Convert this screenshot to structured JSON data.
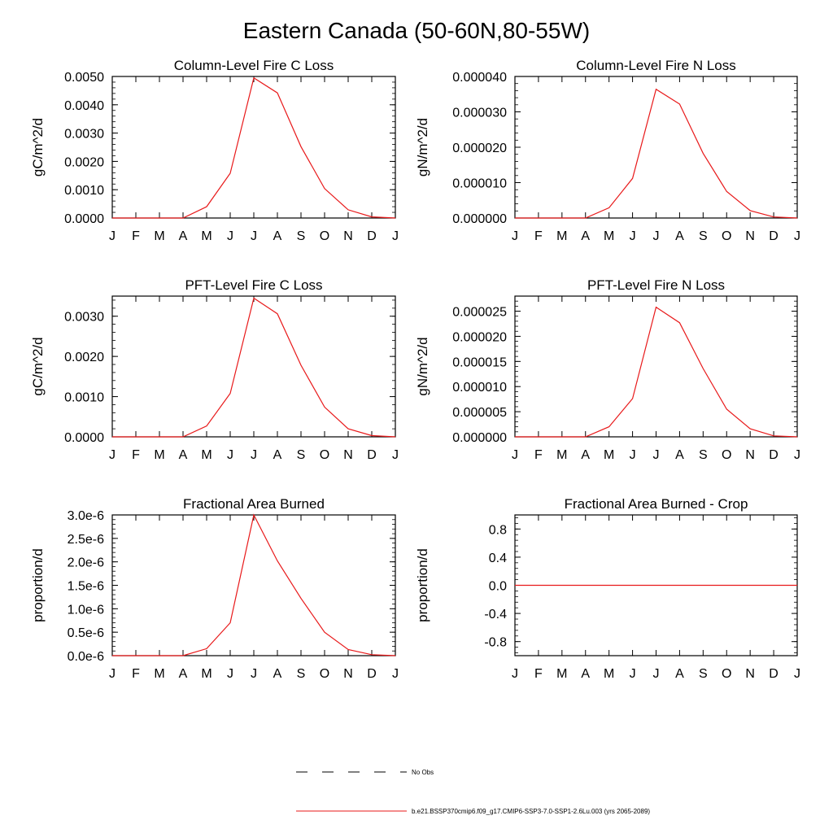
{
  "page_title": "Eastern Canada (50-60N,80-55W)",
  "chart_data": [
    {
      "type": "line",
      "title": "Column-Level Fire C Loss",
      "ylabel": "gC/m^2/d",
      "xlabel": "",
      "categories": [
        "J",
        "F",
        "M",
        "A",
        "M",
        "J",
        "J",
        "A",
        "S",
        "O",
        "N",
        "D",
        "J"
      ],
      "ylim": [
        0,
        0.005
      ],
      "yticks": [
        0,
        0.001,
        0.002,
        0.003,
        0.004,
        0.005
      ],
      "ytick_labels": [
        "0.0000",
        "0.0010",
        "0.0020",
        "0.0030",
        "0.0040",
        "0.0050"
      ],
      "series": [
        {
          "color": "#e8191a",
          "values": [
            0,
            0,
            0,
            0,
            0.0004,
            0.00158,
            0.00495,
            0.00442,
            0.00252,
            0.00104,
            0.00029,
            4e-05,
            0
          ]
        }
      ]
    },
    {
      "type": "line",
      "title": "Column-Level Fire N Loss",
      "ylabel": "gN/m^2/d",
      "xlabel": "",
      "categories": [
        "J",
        "F",
        "M",
        "A",
        "M",
        "J",
        "J",
        "A",
        "S",
        "O",
        "N",
        "D",
        "J"
      ],
      "ylim": [
        0,
        4e-05
      ],
      "yticks": [
        0,
        1e-05,
        2e-05,
        3e-05,
        4e-05
      ],
      "ytick_labels": [
        "0.000000",
        "0.000010",
        "0.000020",
        "0.000030",
        "0.000040"
      ],
      "series": [
        {
          "color": "#e8191a",
          "values": [
            0,
            0,
            0,
            0,
            2.9e-06,
            1.12e-05,
            3.64e-05,
            3.22e-05,
            1.83e-05,
            7.5e-06,
            2.1e-06,
            3e-07,
            0
          ]
        }
      ]
    },
    {
      "type": "line",
      "title": "PFT-Level Fire C Loss",
      "ylabel": "gC/m^2/d",
      "xlabel": "",
      "categories": [
        "J",
        "F",
        "M",
        "A",
        "M",
        "J",
        "J",
        "A",
        "S",
        "O",
        "N",
        "D",
        "J"
      ],
      "ylim": [
        0,
        0.0035
      ],
      "yticks": [
        0,
        0.001,
        0.002,
        0.003
      ],
      "ytick_labels": [
        "0.0000",
        "0.0010",
        "0.0020",
        "0.0030"
      ],
      "series": [
        {
          "color": "#e8191a",
          "values": [
            0,
            0,
            0,
            0,
            0.00027,
            0.00108,
            0.00345,
            0.00306,
            0.00178,
            0.00074,
            0.0002,
            3e-05,
            0
          ]
        }
      ]
    },
    {
      "type": "line",
      "title": "PFT-Level Fire N Loss",
      "ylabel": "gN/m^2/d",
      "xlabel": "",
      "categories": [
        "J",
        "F",
        "M",
        "A",
        "M",
        "J",
        "J",
        "A",
        "S",
        "O",
        "N",
        "D",
        "J"
      ],
      "ylim": [
        0,
        2.8e-05
      ],
      "yticks": [
        0,
        5e-06,
        1e-05,
        1.5e-05,
        2e-05,
        2.5e-05
      ],
      "ytick_labels": [
        "0.000000",
        "0.000005",
        "0.000010",
        "0.000015",
        "0.000020",
        "0.000025"
      ],
      "series": [
        {
          "color": "#e8191a",
          "values": [
            0,
            0,
            0,
            0,
            2e-06,
            7.6e-06,
            2.58e-05,
            2.27e-05,
            1.36e-05,
            5.5e-06,
            1.6e-06,
            2e-07,
            0
          ]
        }
      ]
    },
    {
      "type": "line",
      "title": "Fractional Area Burned",
      "ylabel": "proportion/d",
      "xlabel": "",
      "categories": [
        "J",
        "F",
        "M",
        "A",
        "M",
        "J",
        "J",
        "A",
        "S",
        "O",
        "N",
        "D",
        "J"
      ],
      "ylim": [
        0,
        3e-06
      ],
      "yticks": [
        0,
        5e-07,
        1e-06,
        1.5e-06,
        2e-06,
        2.5e-06,
        3e-06
      ],
      "ytick_labels": [
        "0.0e-6",
        "0.5e-6",
        "1.0e-6",
        "1.5e-6",
        "2.0e-6",
        "2.5e-6",
        "3.0e-6"
      ],
      "series": [
        {
          "color": "#e8191a",
          "values": [
            0,
            0,
            0,
            0,
            1.5e-07,
            7e-07,
            3e-06,
            2.02e-06,
            1.22e-06,
            5e-07,
            1.3e-07,
            2e-08,
            0
          ]
        }
      ]
    },
    {
      "type": "line",
      "title": "Fractional Area Burned - Crop",
      "ylabel": "proportion/d",
      "xlabel": "",
      "categories": [
        "J",
        "F",
        "M",
        "A",
        "M",
        "J",
        "J",
        "A",
        "S",
        "O",
        "N",
        "D",
        "J"
      ],
      "ylim": [
        -1,
        1
      ],
      "yticks": [
        -0.8,
        -0.4,
        0,
        0.4,
        0.8
      ],
      "ytick_labels": [
        "-0.8",
        "-0.4",
        "0.0",
        "0.4",
        "0.8"
      ],
      "series": [
        {
          "color": "#e8191a",
          "values": [
            0,
            0,
            0,
            0,
            0,
            0,
            0,
            0,
            0,
            0,
            0,
            0,
            0
          ]
        }
      ]
    }
  ],
  "legend": [
    {
      "label": "No Obs",
      "color": "#000000",
      "style": "dashed"
    },
    {
      "label": "b.e21.BSSP370cmip6.f09_g17.CMIP6-SSP3-7.0-SSP1-2.6Lu.003 (yrs 2065-2089)",
      "color": "#e8191a",
      "style": "solid"
    }
  ]
}
